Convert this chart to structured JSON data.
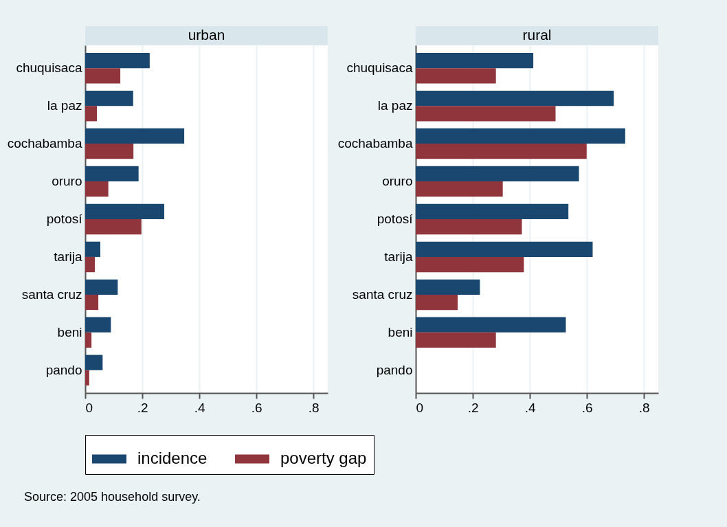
{
  "chart_data": [
    {
      "type": "bar",
      "orientation": "horizontal",
      "title": "urban",
      "categories": [
        "chuquisaca",
        "la paz",
        "cochabamba",
        "oruro",
        "potosí",
        "tarija",
        "santa cruz",
        "beni",
        "pando"
      ],
      "series": [
        {
          "name": "incidence",
          "color": "#1a476f",
          "values": [
            0.226,
            0.168,
            0.347,
            0.187,
            0.277,
            0.053,
            0.114,
            0.09,
            0.061
          ]
        },
        {
          "name": "poverty gap",
          "color": "#90353b",
          "values": [
            0.123,
            0.041,
            0.169,
            0.081,
            0.197,
            0.034,
            0.046,
            0.022,
            0.014
          ]
        }
      ],
      "xlim": [
        0,
        0.85
      ],
      "xticks": [
        0,
        {
          "value": 0.2,
          "label": ".2"
        },
        {
          "value": 0.4,
          "label": ".4"
        },
        {
          "value": 0.6,
          "label": ".6"
        },
        {
          "value": 0.8,
          "label": ".8"
        }
      ],
      "grid": "x",
      "legend": "bottom",
      "annotations": [
        "Source: 2005 household survey."
      ]
    },
    {
      "type": "bar",
      "orientation": "horizontal",
      "title": "rural",
      "categories": [
        "chuquisaca",
        "la paz",
        "cochabamba",
        "oruro",
        "potosí",
        "tarija",
        "santa cruz",
        "beni",
        "pando"
      ],
      "series": [
        {
          "name": "incidence",
          "color": "#1a476f",
          "values": [
            0.412,
            0.694,
            0.734,
            0.572,
            0.535,
            0.62,
            0.225,
            0.526,
            null
          ]
        },
        {
          "name": "poverty gap",
          "color": "#90353b",
          "values": [
            0.281,
            0.49,
            0.599,
            0.305,
            0.372,
            0.379,
            0.147,
            0.281,
            null
          ]
        }
      ],
      "xlim": [
        0,
        0.85
      ],
      "xticks": [
        0,
        {
          "value": 0.2,
          "label": ".2"
        },
        {
          "value": 0.4,
          "label": ".4"
        },
        {
          "value": 0.6,
          "label": ".6"
        },
        {
          "value": 0.8,
          "label": ".8"
        }
      ],
      "grid": "x"
    }
  ]
}
